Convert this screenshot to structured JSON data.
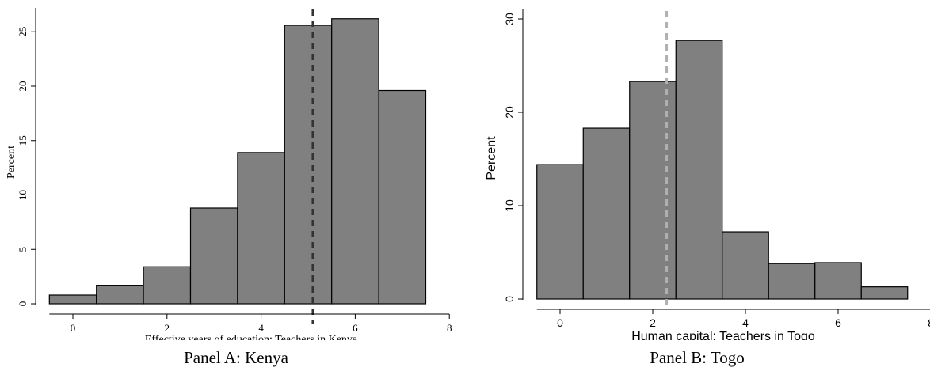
{
  "chart_data": [
    {
      "type": "bar",
      "subtype": "histogram",
      "panel_caption": "Panel A: Kenya",
      "xlabel": "Effective years of education: Teachers in Kenya",
      "ylabel": "Percent",
      "xlim": [
        -0.5,
        8
      ],
      "ylim": [
        0,
        27
      ],
      "xticks": [
        0,
        2,
        4,
        6,
        8
      ],
      "yticks": [
        0,
        5,
        10,
        15,
        20,
        25
      ],
      "bin_width": 1,
      "bin_centers": [
        0,
        1,
        2,
        3,
        4,
        5,
        6,
        7
      ],
      "values": [
        0.8,
        1.7,
        3.4,
        8.8,
        13.9,
        25.6,
        26.2,
        19.6
      ],
      "reference_line": {
        "x": 5.1,
        "style": "dashed",
        "color": "#333333"
      },
      "bar_color": "#808080",
      "grid": false,
      "legend": "none"
    },
    {
      "type": "bar",
      "subtype": "histogram",
      "panel_caption": "Panel B: Togo",
      "xlabel": "Human capital: Teachers in Togo",
      "ylabel": "Percent",
      "xlim": [
        -0.5,
        8
      ],
      "ylim": [
        0,
        30
      ],
      "xticks": [
        0,
        2,
        4,
        6,
        8
      ],
      "yticks": [
        0,
        10,
        20,
        30
      ],
      "bin_width": 1,
      "bin_centers": [
        0,
        1,
        2,
        3,
        4,
        5,
        6,
        7
      ],
      "values": [
        14.4,
        18.3,
        23.3,
        27.7,
        7.2,
        3.8,
        3.9,
        1.3
      ],
      "reference_line": {
        "x": 2.3,
        "style": "dashed",
        "color": "#b0b0b0"
      },
      "bar_color": "#808080",
      "grid": false,
      "legend": "none"
    }
  ]
}
